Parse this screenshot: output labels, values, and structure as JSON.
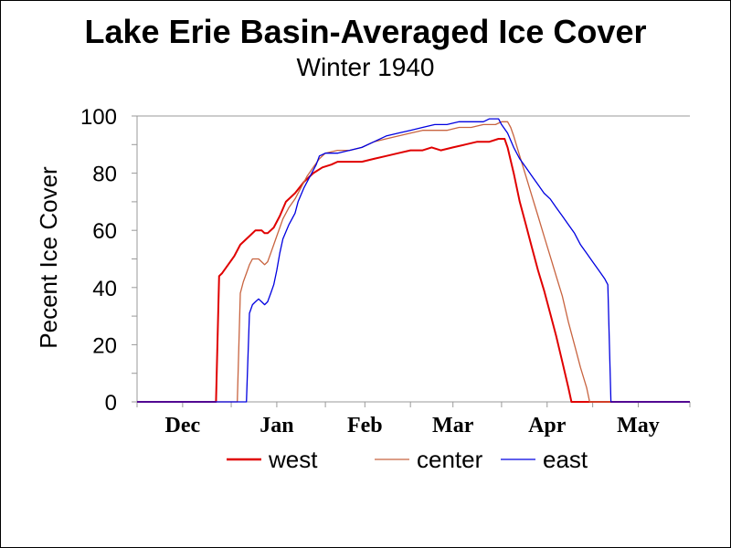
{
  "chart_data": {
    "type": "line",
    "title": "Lake Erie Basin-Averaged Ice Cover",
    "subtitle": "Winter 1940",
    "xlabel": "",
    "ylabel": "Pecent Ice Cover",
    "ylim": [
      0,
      100
    ],
    "y_ticks": [
      "0",
      "20",
      "40",
      "60",
      "80",
      "100"
    ],
    "x_day_range": [
      0,
      182
    ],
    "x_ticks": [
      {
        "label": "Dec",
        "day": 15
      },
      {
        "label": "Jan",
        "day": 46
      },
      {
        "label": "Feb",
        "day": 75
      },
      {
        "label": "Mar",
        "day": 104
      },
      {
        "label": "Apr",
        "day": 135
      },
      {
        "label": "May",
        "day": 165
      }
    ],
    "grid": false,
    "legend_position": "bottom",
    "series": [
      {
        "name": "west",
        "color": "#e00000",
        "points": [
          [
            0,
            0
          ],
          [
            26,
            0
          ],
          [
            27,
            44
          ],
          [
            28,
            45
          ],
          [
            30,
            48
          ],
          [
            32,
            51
          ],
          [
            34,
            55
          ],
          [
            37,
            58
          ],
          [
            39,
            60
          ],
          [
            41,
            60
          ],
          [
            42,
            59
          ],
          [
            43,
            59
          ],
          [
            45,
            61
          ],
          [
            47,
            65
          ],
          [
            49,
            70
          ],
          [
            52,
            73
          ],
          [
            55,
            77
          ],
          [
            58,
            80
          ],
          [
            61,
            82
          ],
          [
            64,
            83
          ],
          [
            66,
            84
          ],
          [
            70,
            84
          ],
          [
            74,
            84
          ],
          [
            78,
            85
          ],
          [
            82,
            86
          ],
          [
            86,
            87
          ],
          [
            90,
            88
          ],
          [
            94,
            88
          ],
          [
            97,
            89
          ],
          [
            100,
            88
          ],
          [
            104,
            89
          ],
          [
            108,
            90
          ],
          [
            112,
            91
          ],
          [
            116,
            91
          ],
          [
            119,
            92
          ],
          [
            121,
            92
          ],
          [
            122,
            89
          ],
          [
            124,
            80
          ],
          [
            126,
            70
          ],
          [
            128,
            62
          ],
          [
            130,
            54
          ],
          [
            132,
            46
          ],
          [
            134,
            39
          ],
          [
            136,
            31
          ],
          [
            138,
            23
          ],
          [
            140,
            14
          ],
          [
            142,
            5
          ],
          [
            143,
            0
          ],
          [
            182,
            0
          ]
        ]
      },
      {
        "name": "center",
        "color": "#c86440",
        "points": [
          [
            0,
            0
          ],
          [
            33,
            0
          ],
          [
            34,
            38
          ],
          [
            35,
            42
          ],
          [
            36,
            45
          ],
          [
            37,
            48
          ],
          [
            38,
            50
          ],
          [
            40,
            50
          ],
          [
            41,
            49
          ],
          [
            42,
            48
          ],
          [
            43,
            49
          ],
          [
            44,
            52
          ],
          [
            45,
            55
          ],
          [
            46,
            58
          ],
          [
            48,
            64
          ],
          [
            50,
            68
          ],
          [
            52,
            71
          ],
          [
            54,
            75
          ],
          [
            56,
            79
          ],
          [
            58,
            82
          ],
          [
            60,
            85
          ],
          [
            62,
            87
          ],
          [
            66,
            88
          ],
          [
            70,
            88
          ],
          [
            74,
            89
          ],
          [
            78,
            91
          ],
          [
            82,
            92
          ],
          [
            86,
            93
          ],
          [
            90,
            94
          ],
          [
            94,
            95
          ],
          [
            98,
            95
          ],
          [
            102,
            95
          ],
          [
            106,
            96
          ],
          [
            110,
            96
          ],
          [
            114,
            97
          ],
          [
            118,
            97
          ],
          [
            120,
            98
          ],
          [
            122,
            98
          ],
          [
            123,
            96
          ],
          [
            124,
            93
          ],
          [
            126,
            86
          ],
          [
            128,
            79
          ],
          [
            130,
            72
          ],
          [
            132,
            65
          ],
          [
            134,
            58
          ],
          [
            136,
            51
          ],
          [
            138,
            44
          ],
          [
            140,
            37
          ],
          [
            142,
            28
          ],
          [
            144,
            20
          ],
          [
            146,
            12
          ],
          [
            148,
            5
          ],
          [
            149,
            0
          ],
          [
            182,
            0
          ]
        ]
      },
      {
        "name": "east",
        "color": "#0000e0",
        "points": [
          [
            0,
            0
          ],
          [
            36,
            0
          ],
          [
            37,
            31
          ],
          [
            38,
            34
          ],
          [
            39,
            35
          ],
          [
            40,
            36
          ],
          [
            41,
            35
          ],
          [
            42,
            34
          ],
          [
            43,
            35
          ],
          [
            44,
            38
          ],
          [
            45,
            41
          ],
          [
            46,
            46
          ],
          [
            47,
            52
          ],
          [
            48,
            57
          ],
          [
            50,
            62
          ],
          [
            52,
            66
          ],
          [
            53,
            70
          ],
          [
            55,
            75
          ],
          [
            57,
            79
          ],
          [
            59,
            83
          ],
          [
            60,
            86
          ],
          [
            62,
            87
          ],
          [
            66,
            87
          ],
          [
            70,
            88
          ],
          [
            74,
            89
          ],
          [
            78,
            91
          ],
          [
            82,
            93
          ],
          [
            86,
            94
          ],
          [
            90,
            95
          ],
          [
            94,
            96
          ],
          [
            98,
            97
          ],
          [
            102,
            97
          ],
          [
            106,
            98
          ],
          [
            110,
            98
          ],
          [
            114,
            98
          ],
          [
            116,
            99
          ],
          [
            119,
            99
          ],
          [
            120,
            97
          ],
          [
            122,
            94
          ],
          [
            124,
            89
          ],
          [
            126,
            85
          ],
          [
            128,
            82
          ],
          [
            130,
            79
          ],
          [
            132,
            76
          ],
          [
            134,
            73
          ],
          [
            136,
            71
          ],
          [
            138,
            68
          ],
          [
            140,
            65
          ],
          [
            142,
            62
          ],
          [
            144,
            59
          ],
          [
            146,
            55
          ],
          [
            148,
            52
          ],
          [
            150,
            49
          ],
          [
            152,
            46
          ],
          [
            154,
            43
          ],
          [
            155,
            41
          ],
          [
            156,
            0
          ],
          [
            182,
            0
          ]
        ]
      }
    ]
  }
}
